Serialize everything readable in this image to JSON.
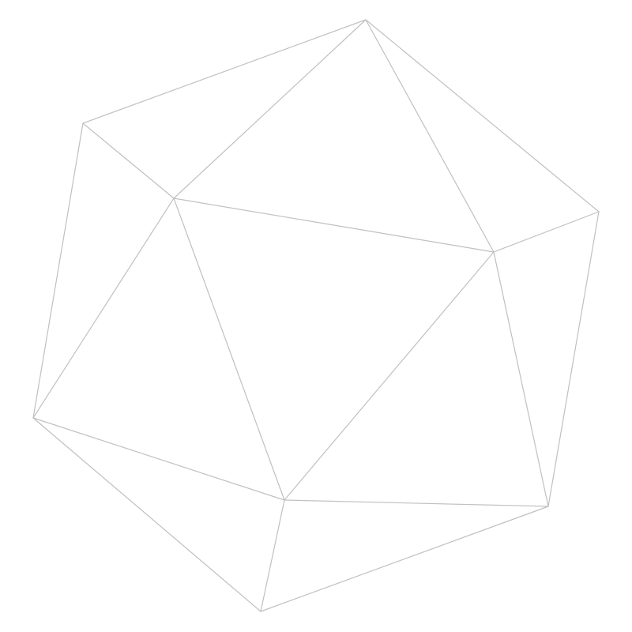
{
  "diagram": {
    "stroke_color": "#c0c0c0",
    "background_color": "#ffffff"
  }
}
